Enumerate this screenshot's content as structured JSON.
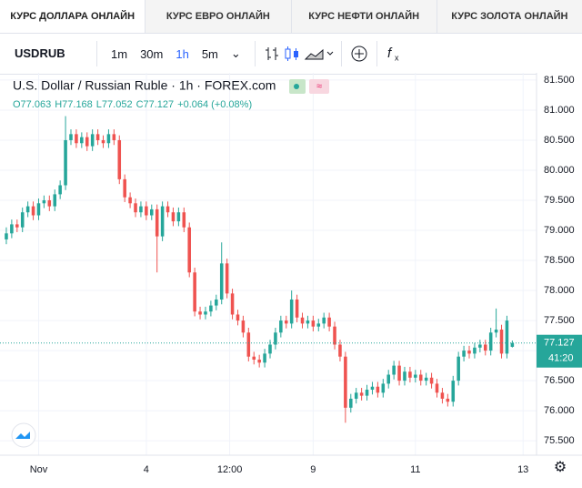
{
  "tabs": [
    "КУРС ДОЛЛАРА ОНЛАЙН",
    "КУРС ЕВРО ОНЛАЙН",
    "КУРС НЕФТИ ОНЛАЙН",
    "КУРС ЗОЛОТА ОНЛАЙН"
  ],
  "toolbar": {
    "symbol": "USDRUB",
    "intervals": [
      "1m",
      "30m",
      "1h",
      "5m"
    ]
  },
  "chart_data": {
    "type": "candlestick",
    "title": "U.S. Dollar / Russian Ruble · 1h · FOREX.com",
    "ohlc_legend": [
      "O77.063",
      "H77.168",
      "L77.052",
      "C77.127",
      "+0.064 (+0.08%)"
    ],
    "up_color": "#26a69a",
    "down_color": "#ef5350",
    "grid": true,
    "last_price": {
      "value": 77.127,
      "label": "77.127"
    },
    "countdown": "41:20",
    "xlim": [
      0,
      99
    ],
    "xticks": [
      {
        "value": 6.5,
        "label": "Nov"
      },
      {
        "value": 26.5,
        "label": "4"
      },
      {
        "value": 42,
        "label": "12:00"
      },
      {
        "value": 57.5,
        "label": "9"
      },
      {
        "value": 76.5,
        "label": "11"
      },
      {
        "value": 96.5,
        "label": "13"
      }
    ],
    "ylim": [
      75.26,
      81.62
    ],
    "yticks": [
      {
        "value": 75.5,
        "label": "75.500"
      },
      {
        "value": 76,
        "label": "76.000"
      },
      {
        "value": 76.5,
        "label": "76.500"
      },
      {
        "value": 77,
        "label": "77.000"
      },
      {
        "value": 77.5,
        "label": "77.500"
      },
      {
        "value": 78,
        "label": "78.000"
      },
      {
        "value": 78.5,
        "label": "78.500"
      },
      {
        "value": 79,
        "label": "79.000"
      },
      {
        "value": 79.5,
        "label": "79.500"
      },
      {
        "value": 80,
        "label": "80.000"
      },
      {
        "value": 80.5,
        "label": "80.500"
      },
      {
        "value": 81,
        "label": "81.000"
      },
      {
        "value": 81.5,
        "label": "81.500"
      }
    ],
    "open": [
      78.85,
      78.95,
      79.1,
      79.05,
      79.3,
      79.4,
      79.25,
      79.45,
      79.5,
      79.4,
      79.6,
      79.75,
      80.5,
      80.6,
      80.45,
      80.55,
      80.4,
      80.6,
      80.5,
      80.45,
      80.6,
      80.5,
      79.85,
      79.55,
      79.45,
      79.3,
      79.4,
      79.25,
      79.35,
      78.9,
      79.4,
      79.3,
      79.15,
      79.3,
      79.05,
      78.3,
      77.65,
      77.6,
      77.65,
      77.75,
      77.85,
      78.45,
      77.95,
      77.6,
      77.5,
      77.3,
      76.9,
      76.85,
      76.8,
      76.95,
      77.1,
      77.3,
      77.5,
      77.45,
      77.85,
      77.55,
      77.45,
      77.5,
      77.4,
      77.45,
      77.55,
      77.4,
      77.1,
      76.9,
      76.05,
      76.2,
      76.3,
      76.25,
      76.35,
      76.4,
      76.3,
      76.45,
      76.6,
      76.75,
      76.5,
      76.65,
      76.55,
      76.6,
      76.5,
      76.55,
      76.45,
      76.3,
      76.2,
      76.15,
      76.5,
      76.9,
      77.0,
      76.95,
      77.05,
      77.1,
      77.0,
      77.3,
      77.35,
      76.95,
      77.063
    ],
    "high": [
      79.05,
      79.18,
      79.18,
      79.38,
      79.48,
      79.48,
      79.53,
      79.58,
      79.58,
      79.68,
      79.83,
      80.9,
      80.68,
      80.68,
      80.63,
      80.63,
      80.68,
      80.68,
      80.58,
      80.68,
      80.68,
      80.58,
      79.93,
      79.63,
      79.53,
      79.48,
      79.48,
      79.43,
      79.43,
      79.48,
      79.48,
      79.38,
      79.38,
      79.38,
      79.13,
      78.38,
      77.73,
      77.73,
      77.83,
      77.93,
      78.8,
      78.53,
      78.03,
      77.68,
      77.58,
      77.38,
      76.98,
      76.93,
      77.03,
      77.18,
      77.38,
      77.58,
      77.58,
      78.0,
      77.93,
      77.63,
      77.58,
      77.58,
      77.53,
      77.63,
      77.63,
      77.48,
      77.18,
      76.98,
      76.28,
      76.38,
      76.38,
      76.43,
      76.48,
      76.48,
      76.53,
      76.68,
      76.83,
      76.83,
      76.73,
      76.73,
      76.68,
      76.68,
      76.63,
      76.63,
      76.53,
      76.38,
      76.28,
      76.58,
      76.98,
      77.08,
      77.08,
      77.13,
      77.18,
      77.18,
      77.38,
      77.7,
      77.43,
      77.58,
      77.168
    ],
    "low": [
      78.77,
      78.87,
      78.97,
      78.97,
      79.22,
      79.17,
      79.17,
      79.37,
      79.32,
      79.32,
      79.52,
      79.67,
      80.42,
      80.37,
      80.37,
      80.32,
      80.32,
      80.42,
      80.37,
      80.37,
      80.42,
      79.77,
      79.47,
      79.37,
      79.22,
      79.22,
      79.17,
      79.17,
      78.3,
      78.82,
      79.22,
      79.07,
      79.07,
      78.97,
      78.22,
      77.57,
      77.52,
      77.52,
      77.57,
      77.67,
      77.77,
      77.87,
      77.52,
      77.42,
      77.22,
      76.82,
      76.77,
      76.72,
      76.72,
      76.87,
      77.02,
      77.22,
      77.37,
      77.37,
      77.47,
      77.37,
      77.37,
      77.32,
      77.32,
      77.37,
      77.32,
      77.02,
      76.82,
      75.8,
      75.97,
      76.12,
      76.17,
      76.17,
      76.27,
      76.22,
      76.22,
      76.37,
      76.52,
      76.42,
      76.42,
      76.47,
      76.47,
      76.42,
      76.42,
      76.37,
      76.22,
      76.12,
      76.07,
      76.07,
      76.42,
      76.82,
      76.87,
      76.87,
      76.97,
      76.92,
      76.92,
      77.22,
      76.87,
      76.87,
      77.052
    ],
    "close": [
      78.95,
      79.1,
      79.05,
      79.3,
      79.4,
      79.25,
      79.45,
      79.5,
      79.4,
      79.6,
      79.75,
      80.5,
      80.6,
      80.45,
      80.55,
      80.4,
      80.6,
      80.5,
      80.45,
      80.6,
      80.5,
      79.85,
      79.55,
      79.45,
      79.3,
      79.4,
      79.25,
      79.35,
      78.9,
      79.4,
      79.3,
      79.15,
      79.3,
      79.05,
      78.3,
      77.65,
      77.6,
      77.65,
      77.75,
      77.85,
      78.45,
      77.95,
      77.6,
      77.5,
      77.3,
      76.9,
      76.85,
      76.8,
      76.95,
      77.1,
      77.3,
      77.5,
      77.45,
      77.85,
      77.55,
      77.45,
      77.5,
      77.4,
      77.45,
      77.55,
      77.4,
      77.1,
      76.9,
      76.05,
      76.2,
      76.3,
      76.25,
      76.35,
      76.4,
      76.3,
      76.45,
      76.6,
      76.75,
      76.5,
      76.65,
      76.55,
      76.6,
      76.5,
      76.55,
      76.45,
      76.3,
      76.2,
      76.15,
      76.5,
      76.9,
      77.0,
      76.95,
      77.05,
      77.1,
      77.0,
      77.3,
      77.35,
      76.95,
      77.5,
      77.127
    ]
  }
}
